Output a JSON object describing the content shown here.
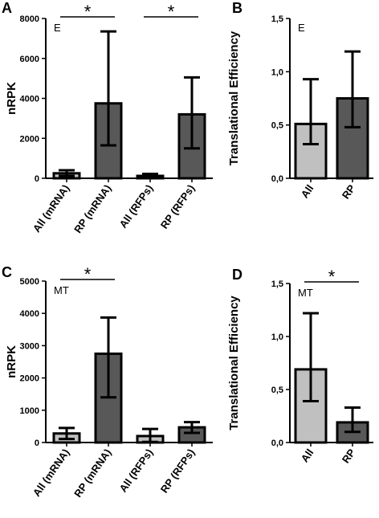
{
  "colors": {
    "light_bar": "#c0c0c0",
    "dark_bar": "#585858",
    "axis": "#000000"
  },
  "chart_data": [
    {
      "panel": "A",
      "type": "bar",
      "condition_label": "E",
      "ylabel": "nRPK",
      "ylim": [
        0,
        8000
      ],
      "yticks": [
        "0",
        "2000",
        "4000",
        "6000",
        "8000"
      ],
      "categories": [
        "All (mRNA)",
        "RP (mRNA)",
        "All (RFPs)",
        "RP (RFPs)"
      ],
      "values": [
        250,
        3750,
        120,
        3200
      ],
      "error_low": [
        120,
        1650,
        30,
        1500
      ],
      "error_high": [
        400,
        7350,
        220,
        5050
      ],
      "bar_colors": [
        "light",
        "dark",
        "light",
        "dark"
      ],
      "significance": [
        {
          "from": 0,
          "to": 1,
          "label": "*"
        },
        {
          "from": 2,
          "to": 3,
          "label": "*"
        }
      ]
    },
    {
      "panel": "B",
      "type": "bar",
      "condition_label": "E",
      "ylabel": "Translational Efficiency",
      "ylim": [
        0,
        1.5
      ],
      "yticks": [
        "0,0",
        "0,5",
        "1,0",
        "1,5"
      ],
      "categories": [
        "All",
        "RP"
      ],
      "values": [
        0.51,
        0.75
      ],
      "error_low": [
        0.32,
        0.48
      ],
      "error_high": [
        0.93,
        1.19
      ],
      "bar_colors": [
        "light",
        "dark"
      ],
      "significance": []
    },
    {
      "panel": "C",
      "type": "bar",
      "condition_label": "MT",
      "ylabel": "nRPK",
      "ylim": [
        0,
        5000
      ],
      "yticks": [
        "0",
        "1000",
        "2000",
        "3000",
        "4000",
        "5000"
      ],
      "categories": [
        "All (mRNA)",
        "RP (mRNA)",
        "All (RFPs)",
        "RP (RFPs)"
      ],
      "values": [
        280,
        2750,
        200,
        470
      ],
      "error_low": [
        110,
        1400,
        20,
        300
      ],
      "error_high": [
        450,
        3870,
        420,
        630
      ],
      "bar_colors": [
        "light",
        "dark",
        "light",
        "dark"
      ],
      "significance": [
        {
          "from": 0,
          "to": 1,
          "label": "*"
        }
      ]
    },
    {
      "panel": "D",
      "type": "bar",
      "condition_label": "MT",
      "ylabel": "Translational Efficiency",
      "ylim": [
        0,
        1.5
      ],
      "yticks": [
        "0,0",
        "0,5",
        "1,0",
        "1,5"
      ],
      "categories": [
        "All",
        "RP"
      ],
      "values": [
        0.69,
        0.19
      ],
      "error_low": [
        0.39,
        0.1
      ],
      "error_high": [
        1.22,
        0.33
      ],
      "bar_colors": [
        "light",
        "dark"
      ],
      "significance": [
        {
          "from": 0,
          "to": 1,
          "label": "*"
        }
      ]
    }
  ]
}
